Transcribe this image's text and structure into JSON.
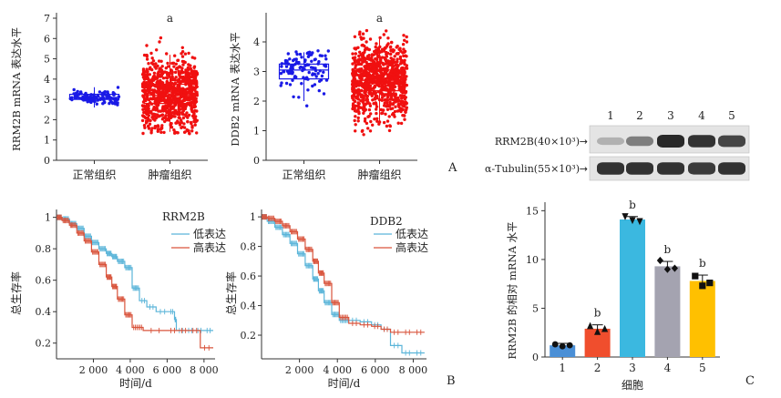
{
  "panel_labels": {
    "A": "A",
    "B": "B",
    "C": "C"
  },
  "chart_data": [
    {
      "id": "box-rrm2b",
      "type": "box",
      "ylabel": "RRM2B mRNA 表达水平",
      "ylim": [
        0,
        7
      ],
      "yticks": [
        0,
        1,
        2,
        3,
        4,
        5,
        6,
        7
      ],
      "categories": [
        "正常组织",
        "肿瘤组织"
      ],
      "boxes": [
        {
          "name": "正常组织",
          "color": "#1a1ae6",
          "q1": 3.0,
          "median": 3.1,
          "q3": 3.25,
          "whisker_low": 2.6,
          "whisker_high": 3.6,
          "points_min": 2.3,
          "points_max": 4.0
        },
        {
          "name": "肿瘤组织",
          "color": "#f01010",
          "q1": 2.8,
          "median": 3.2,
          "q3": 3.75,
          "whisker_low": 1.4,
          "whisker_high": 5.2,
          "points_min": 1.3,
          "points_max": 6.3
        }
      ],
      "significance": [
        "",
        "a"
      ]
    },
    {
      "id": "box-ddb2",
      "type": "box",
      "ylabel": "DDB2 mRNA 表达水平",
      "ylim": [
        0,
        4.8
      ],
      "yticks": [
        0,
        1,
        2,
        3,
        4
      ],
      "categories": [
        "正常组织",
        "肿瘤组织"
      ],
      "boxes": [
        {
          "name": "正常组织",
          "color": "#1a1ae6",
          "q1": 2.75,
          "median": 3.05,
          "q3": 3.25,
          "whisker_low": 2.0,
          "whisker_high": 3.65,
          "points_min": 1.1,
          "points_max": 3.7
        },
        {
          "name": "肿瘤组织",
          "color": "#f01010",
          "q1": 2.35,
          "median": 2.7,
          "q3": 3.05,
          "whisker_low": 1.3,
          "whisker_high": 4.1,
          "points_min": 0.8,
          "points_max": 4.4
        }
      ],
      "significance": [
        "",
        "a"
      ]
    },
    {
      "id": "km-rrm2b",
      "type": "line",
      "title": "RRM2B",
      "xlabel": "时间/d",
      "ylabel": "总生存率",
      "xlim": [
        0,
        8600
      ],
      "ylim": [
        0.1,
        1.05
      ],
      "xticks": [
        2000,
        4000,
        6000,
        8000
      ],
      "xtick_labels": [
        "2 000",
        "4 000",
        "6 000",
        "8 000"
      ],
      "yticks": [
        0.2,
        0.4,
        0.6,
        0.8,
        1.0
      ],
      "series": [
        {
          "name": "低表达",
          "color": "#5bb5d9",
          "x": [
            0,
            300,
            700,
            1100,
            1500,
            1900,
            2300,
            2700,
            3000,
            3300,
            3700,
            4100,
            4500,
            4900,
            5400,
            6100,
            6400,
            6500,
            7000,
            7500,
            8000,
            8500
          ],
          "y": [
            1.0,
            0.99,
            0.96,
            0.93,
            0.88,
            0.84,
            0.8,
            0.77,
            0.75,
            0.72,
            0.68,
            0.55,
            0.47,
            0.43,
            0.4,
            0.4,
            0.35,
            0.28,
            0.28,
            0.28,
            0.28,
            0.28
          ]
        },
        {
          "name": "高表达",
          "color": "#d9543c",
          "x": [
            0,
            300,
            700,
            1100,
            1500,
            1900,
            2300,
            2700,
            3000,
            3300,
            3700,
            4100,
            4700,
            6000,
            6600,
            7200,
            7800,
            8500
          ],
          "y": [
            1.0,
            0.98,
            0.95,
            0.9,
            0.85,
            0.78,
            0.7,
            0.62,
            0.56,
            0.48,
            0.38,
            0.3,
            0.28,
            0.28,
            0.28,
            0.28,
            0.17,
            0.17
          ]
        }
      ]
    },
    {
      "id": "km-ddb2",
      "type": "line",
      "title": "DDB2",
      "xlabel": "时间/d",
      "ylabel": "总生存率",
      "xlim": [
        0,
        8700
      ],
      "ylim": [
        0.04,
        1.05
      ],
      "xticks": [
        2000,
        4000,
        6000,
        8000
      ],
      "xtick_labels": [
        "2 000",
        "4 000",
        "6 000",
        "8 000"
      ],
      "yticks": [
        0.2,
        0.4,
        0.6,
        0.8,
        1.0
      ],
      "series": [
        {
          "name": "低表达",
          "color": "#5bb5d9",
          "x": [
            0,
            300,
            700,
            1100,
            1500,
            1900,
            2300,
            2700,
            3000,
            3300,
            3700,
            4100,
            4600,
            5200,
            5800,
            6300,
            6800,
            7400,
            8000,
            8600
          ],
          "y": [
            1.0,
            0.97,
            0.93,
            0.88,
            0.82,
            0.75,
            0.67,
            0.58,
            0.5,
            0.42,
            0.34,
            0.3,
            0.3,
            0.29,
            0.27,
            0.24,
            0.13,
            0.08,
            0.08,
            0.08
          ]
        },
        {
          "name": "高表达",
          "color": "#d9543c",
          "x": [
            0,
            300,
            700,
            1100,
            1500,
            1900,
            2300,
            2700,
            3000,
            3300,
            3700,
            4100,
            4600,
            5200,
            5800,
            6300,
            6800,
            7400,
            8000,
            8600
          ],
          "y": [
            1.0,
            0.99,
            0.97,
            0.94,
            0.9,
            0.85,
            0.78,
            0.7,
            0.62,
            0.55,
            0.42,
            0.32,
            0.28,
            0.27,
            0.26,
            0.24,
            0.22,
            0.22,
            0.22,
            0.22
          ]
        }
      ]
    },
    {
      "id": "bar-rrm2b",
      "type": "bar",
      "xlabel": "细胞",
      "ylabel": "RRM2B 的相对 mRNA 水平",
      "ylim": [
        0,
        15.5
      ],
      "yticks": [
        0,
        5,
        10,
        15
      ],
      "categories": [
        "1",
        "2",
        "3",
        "4",
        "5"
      ],
      "values": [
        1.2,
        2.9,
        14.1,
        9.3,
        7.8
      ],
      "errors": [
        0.2,
        0.4,
        0.3,
        0.5,
        0.6
      ],
      "colors": [
        "#4a8fd6",
        "#f04e2d",
        "#3bb8e0",
        "#a4a3b0",
        "#ffc000"
      ],
      "significance": [
        "",
        "b",
        "b",
        "b",
        "b"
      ],
      "points": [
        [
          1.3,
          1.1,
          1.2
        ],
        [
          3.2,
          2.6,
          2.9
        ],
        [
          14.4,
          14.0,
          13.9
        ],
        [
          9.9,
          9.0,
          9.1
        ],
        [
          8.3,
          7.3,
          7.6
        ]
      ]
    }
  ],
  "blot": {
    "lane_labels": [
      "1",
      "2",
      "3",
      "4",
      "5"
    ],
    "rows": [
      {
        "label": "RRM2B(40×10³)",
        "arrow": "→",
        "intensity": [
          0.28,
          0.55,
          1.0,
          0.95,
          0.85
        ]
      },
      {
        "label": "α-Tubulin(55×10³)",
        "arrow": "→",
        "intensity": [
          0.95,
          0.95,
          0.95,
          0.9,
          0.95
        ]
      }
    ]
  }
}
